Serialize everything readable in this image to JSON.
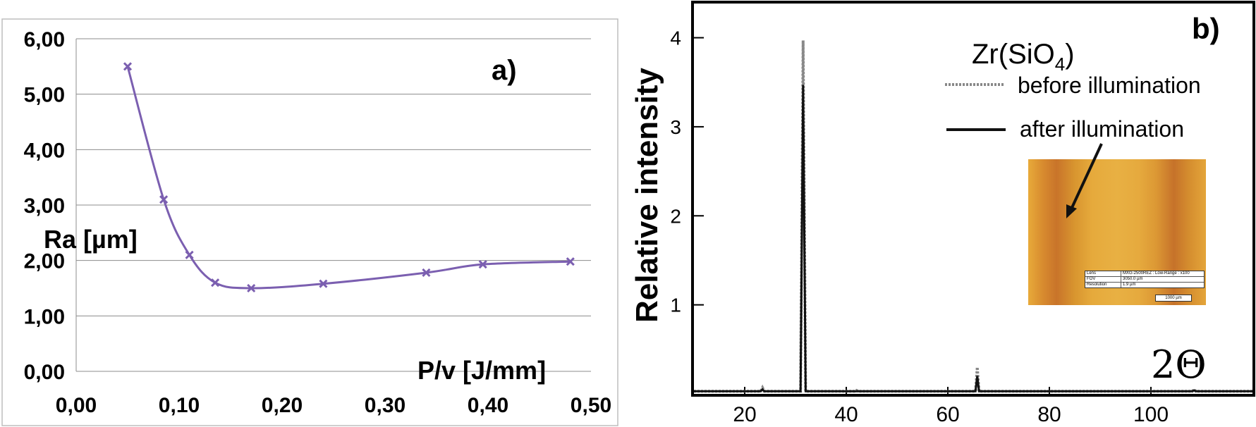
{
  "chart_data": [
    {
      "type": "line",
      "panel_label": "a)",
      "xlabel": "P/v [J/mm]",
      "ylabel": "Ra [µm]",
      "xlim": [
        0,
        0.5
      ],
      "ylim": [
        0,
        6
      ],
      "grid": true,
      "x_ticks": [
        "0,00",
        "0,10",
        "0,20",
        "0,30",
        "0,40",
        "0,50"
      ],
      "y_ticks": [
        "0,00",
        "1,00",
        "2,00",
        "3,00",
        "4,00",
        "5,00",
        "6,00"
      ],
      "series": [
        {
          "name": "Ra",
          "color": "#7b5fb0",
          "x": [
            0.05,
            0.085,
            0.11,
            0.135,
            0.17,
            0.24,
            0.34,
            0.395,
            0.48
          ],
          "y": [
            5.5,
            3.1,
            2.1,
            1.6,
            1.5,
            1.58,
            1.78,
            1.93,
            1.98
          ]
        }
      ]
    },
    {
      "type": "line",
      "panel_label": "b)",
      "xlabel": "2Θ",
      "ylabel": "Relative intensity",
      "xlim": [
        10,
        120
      ],
      "ylim": [
        0,
        4.4
      ],
      "x_ticks": [
        "20",
        "40",
        "60",
        "80",
        "100"
      ],
      "y_ticks": [
        "1",
        "2",
        "3",
        "4"
      ],
      "series": [
        {
          "name": "before illumination",
          "style": "dotted",
          "color": "#888888",
          "peaks": [
            {
              "x": 23.5,
              "y": 0.07
            },
            {
              "x": 31.5,
              "y": 3.97
            },
            {
              "x": 42,
              "y": 0.04
            },
            {
              "x": 65.8,
              "y": 0.3
            },
            {
              "x": 108.5,
              "y": 0.05
            }
          ]
        },
        {
          "name": "after illumination",
          "style": "solid",
          "color": "#111111",
          "peaks": [
            {
              "x": 23.5,
              "y": 0.05
            },
            {
              "x": 31.5,
              "y": 3.47
            },
            {
              "x": 42,
              "y": 0.03
            },
            {
              "x": 65.8,
              "y": 0.2
            },
            {
              "x": 108.5,
              "y": 0.04
            }
          ]
        }
      ],
      "annotations": {
        "compound_main": "Zr(SiO",
        "compound_sub": "4",
        "compound_close": ")"
      },
      "inset": {
        "rows": [
          {
            "key": "Lens",
            "value": "MXG-2500REZ : Low-Range : x100"
          },
          {
            "key": "FOV",
            "value": "3050.0 µm"
          },
          {
            "key": "Resolution",
            "value": "1.9 µm"
          }
        ],
        "scale_bar": "1000 µm"
      }
    }
  ]
}
